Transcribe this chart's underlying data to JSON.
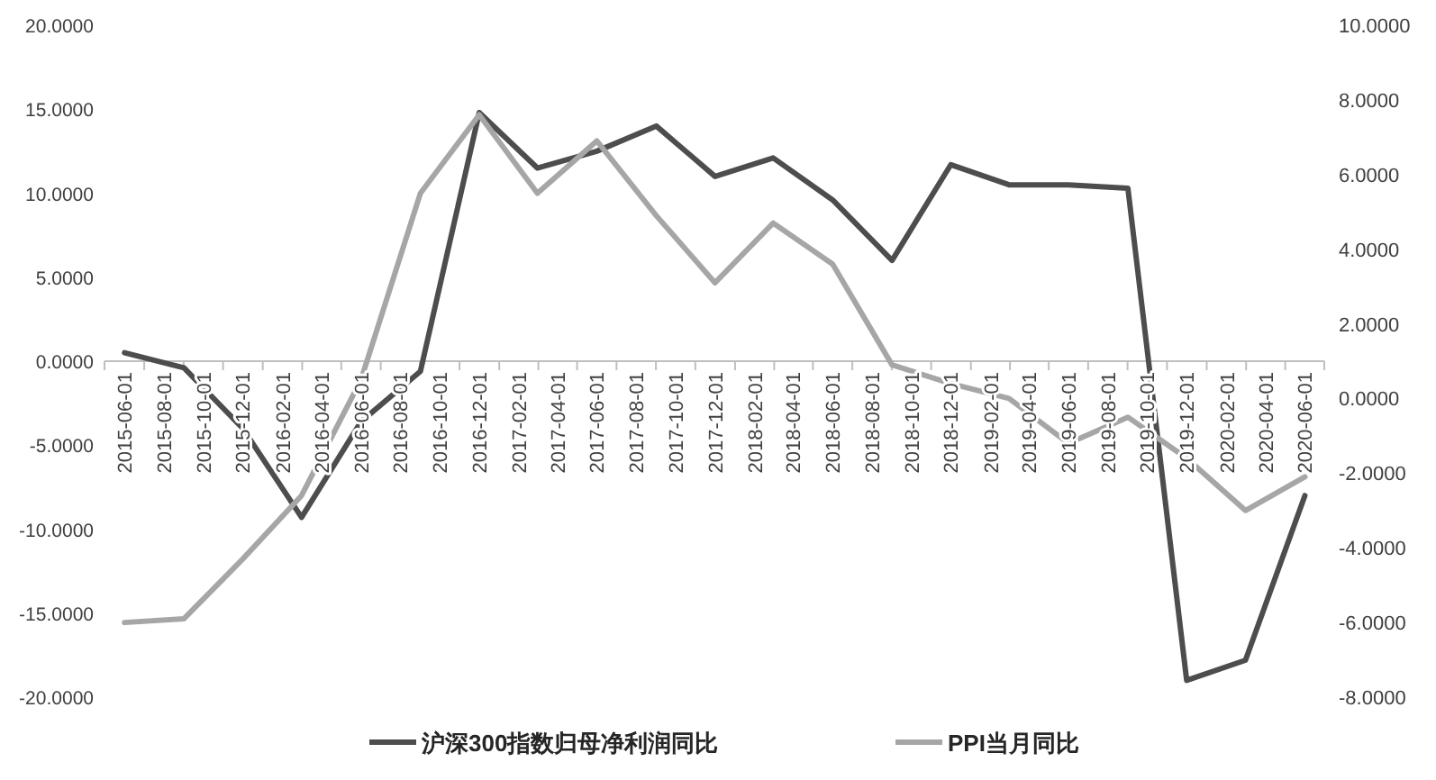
{
  "chart_data": {
    "type": "line",
    "legend": "bottom",
    "grid": false,
    "marker": "none",
    "line_style": "solid",
    "x": [
      "2015-06-01",
      "2015-09-01",
      "2015-12-01",
      "2016-03-01",
      "2016-06-01",
      "2016-09-01",
      "2016-12-01",
      "2017-03-01",
      "2017-06-01",
      "2017-09-01",
      "2017-12-01",
      "2018-03-01",
      "2018-06-01",
      "2018-09-01",
      "2018-12-01",
      "2019-03-01",
      "2019-06-01",
      "2019-09-01",
      "2019-12-01",
      "2020-03-01",
      "2020-06-01"
    ],
    "series": [
      {
        "name": "沪深300指数归母净利润同比",
        "color": "#4d4d4d",
        "values": [
          0.5,
          -0.4,
          -4.0,
          -9.3,
          -3.6,
          -0.6,
          14.8,
          11.5,
          12.5,
          14.0,
          11.0,
          12.1,
          9.6,
          6.0,
          11.7,
          10.5,
          10.5,
          10.3,
          -19.0,
          -17.8,
          -8.0
        ]
      },
      {
        "name": "PPI当月同比",
        "color": "#a6a6a6",
        "axis": "y2",
        "values": [
          -6.0,
          -5.9,
          -4.3,
          -2.6,
          0.5,
          5.5,
          7.6,
          5.5,
          6.9,
          4.9,
          3.1,
          4.7,
          3.6,
          0.9,
          0.4,
          0.0,
          -1.2,
          -0.5,
          -1.6,
          -3.0,
          -2.1
        ]
      }
    ],
    "xlim": [
      "2015-05-01",
      "2020-07-01"
    ],
    "xticks": [
      "2015-06-01",
      "2015-08-01",
      "2015-10-01",
      "2015-12-01",
      "2016-02-01",
      "2016-04-01",
      "2016-06-01",
      "2016-08-01",
      "2016-10-01",
      "2016-12-01",
      "2017-02-01",
      "2017-04-01",
      "2017-06-01",
      "2017-08-01",
      "2017-10-01",
      "2017-12-01",
      "2018-02-01",
      "2018-04-01",
      "2018-06-01",
      "2018-08-01",
      "2018-10-01",
      "2018-12-01",
      "2019-02-01",
      "2019-04-01",
      "2019-06-01",
      "2019-08-01",
      "2019-10-01",
      "2019-12-01",
      "2020-02-01",
      "2020-04-01",
      "2020-06-01"
    ],
    "ylim": [
      -20,
      20
    ],
    "yticks": [
      {
        "value": 20,
        "label": "20.0000"
      },
      {
        "value": 15,
        "label": "15.0000"
      },
      {
        "value": 10,
        "label": "10.0000"
      },
      {
        "value": 5,
        "label": "5.0000"
      },
      {
        "value": 0,
        "label": "0.0000"
      },
      {
        "value": -5,
        "label": "-5.0000"
      },
      {
        "value": -10,
        "label": "-10.0000"
      },
      {
        "value": -15,
        "label": "-15.0000"
      },
      {
        "value": -20,
        "label": "-20.0000"
      }
    ],
    "y2lim": [
      -8,
      10
    ],
    "y2ticks": [
      {
        "value": 10,
        "label": "10.0000"
      },
      {
        "value": 8,
        "label": "8.0000"
      },
      {
        "value": 6,
        "label": "6.0000"
      },
      {
        "value": 4,
        "label": "4.0000"
      },
      {
        "value": 2,
        "label": "2.0000"
      },
      {
        "value": 0,
        "label": "0.0000"
      },
      {
        "value": -2,
        "label": "-2.0000"
      },
      {
        "value": -4,
        "label": "-4.0000"
      },
      {
        "value": -6,
        "label": "-6.0000"
      },
      {
        "value": -8,
        "label": "-8.0000"
      }
    ]
  }
}
